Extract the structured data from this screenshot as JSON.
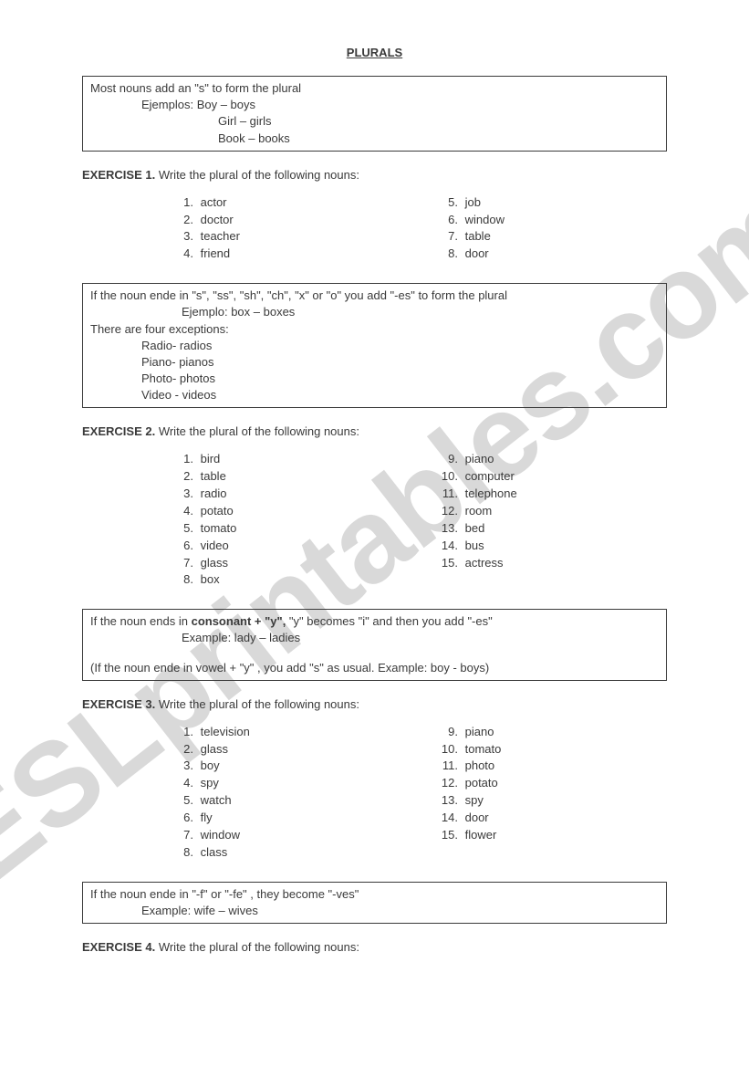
{
  "title": "PLURALS",
  "watermark": "ESLprintables.com",
  "rule1": {
    "line1": "Most nouns add an \"s\" to form the plural",
    "ex_label": "Ejemplos: Boy – boys",
    "ex2": "Girl – girls",
    "ex3": "Book – books"
  },
  "ex1": {
    "label": "EXERCISE 1.",
    "instr": " Write the plural of the following nouns:",
    "colA": [
      "actor",
      "doctor",
      "teacher",
      "friend"
    ],
    "colB": [
      "job",
      "window",
      "table",
      "door"
    ],
    "startA": 1,
    "startB": 5
  },
  "rule2": {
    "line1": "If the noun ende in  \"s\", \"ss\", \"sh\", \"ch\", \"x\" or \"o\" you add \"-es\" to form the plural",
    "ex_label": "Ejemplo: box – boxes",
    "line2": "There are four exceptions:",
    "exc": [
      "Radio- radios",
      "Piano- pianos",
      "Photo- photos",
      "Video - videos"
    ]
  },
  "ex2": {
    "label": "EXERCISE 2.",
    "instr": " Write the plural of the following nouns:",
    "colA": [
      "bird",
      "table",
      "radio",
      "potato",
      "tomato",
      "video",
      "glass",
      "box"
    ],
    "colB": [
      "piano",
      "computer",
      "telephone",
      "room",
      "bed",
      "bus",
      "actress"
    ],
    "startA": 1,
    "startB": 9
  },
  "rule3": {
    "line1_pre": "If the noun ends in ",
    "line1_bold": "consonant + \"y\",",
    "line1_post": "  \"y\" becomes  \"i\" and then you add \"-es\"",
    "ex_label": "Example: lady – ladies",
    "note": " (If the noun ende in vowel + \"y\" , you add \"s\" as usual. Example: boy  - boys)"
  },
  "ex3": {
    "label": "EXERCISE 3.",
    "instr": " Write the plural of the following nouns:",
    "colA": [
      "television",
      "glass",
      "boy",
      "spy",
      "watch",
      "fly",
      "window",
      "class"
    ],
    "colB": [
      "piano",
      "tomato",
      "photo",
      "potato",
      "spy",
      "door",
      "flower"
    ],
    "startA": 1,
    "startB": 9
  },
  "rule4": {
    "line1": "If the noun ende in  \"-f\" or \"-fe\" , they become \"-ves\"",
    "ex_label": "Example: wife – wives"
  },
  "ex4": {
    "label": "EXERCISE 4.",
    "instr": " Write the plural of the following nouns:"
  }
}
